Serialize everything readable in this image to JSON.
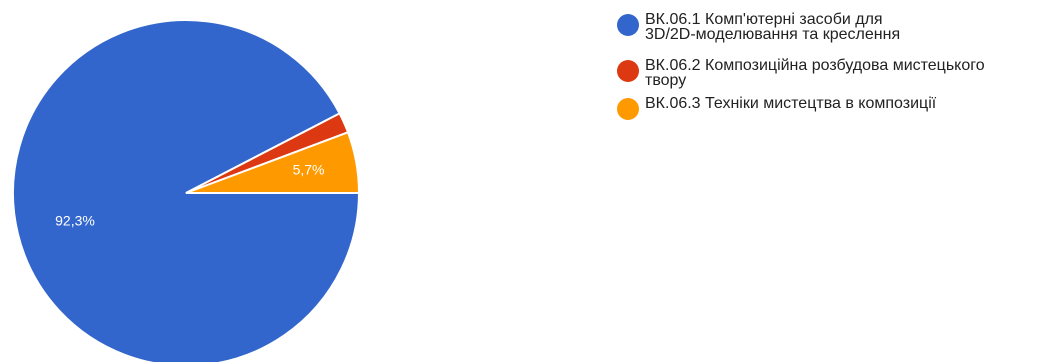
{
  "chart_data": {
    "type": "pie",
    "title": "",
    "slices": [
      {
        "label": "ВК.06.1 Комп'ютерні засоби для\n3D/2D-моделювання та креслення",
        "value": 92.3,
        "display": "92,3%",
        "color": "#3366cc"
      },
      {
        "label": "ВК.06.2 Композиційна розбудова мистецького\nтвору",
        "value": 1.9,
        "display": "",
        "color": "#dc3912"
      },
      {
        "label": "ВК.06.3 Техніки мистецтва в композиції",
        "value": 5.7,
        "display": "5,7%",
        "color": "#ff9900"
      }
    ],
    "legend_position": "top-right"
  },
  "legend": {
    "items": [
      {
        "label": "ВК.06.1 Комп'ютерні засоби для\n 3D/2D-моделювання та креслення",
        "color": "#3366cc"
      },
      {
        "label": "ВК.06.2 Композиційна розбудова мистецького\nтвору",
        "color": "#dc3912"
      },
      {
        "label": "ВК.06.3 Техніки мистецтва в композиції",
        "color": "#ff9900"
      }
    ]
  }
}
